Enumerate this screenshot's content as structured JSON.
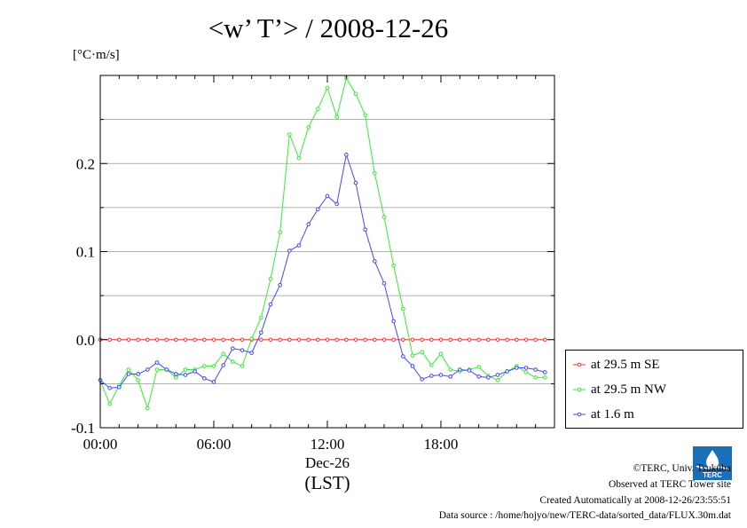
{
  "title": "<w’ T’> / 2008-12-26",
  "unit": "[°C·m/s]",
  "xaxis": {
    "date_label": "Dec-26",
    "tz_label": "(LST)"
  },
  "legend": [
    {
      "label": "at 29.5 m SE",
      "color": "#ff3333"
    },
    {
      "label": "at 29.5 m NW",
      "color": "#33ee33"
    },
    {
      "label": "at 1.6 m",
      "color": "#4444ff"
    }
  ],
  "footer": {
    "credit": "©TERC, Univ. Tsukuba",
    "site": "Observed at TERC Tower site",
    "created": "Created Automatically at 2008-12-26/23:55:51",
    "source": "Data source : /home/hojyo/new/TERC-data/sorted_data/FLUX.30m.dat"
  },
  "logo_text": "TERC",
  "chart_data": {
    "type": "line",
    "title": "<w’ T’> / 2008-12-26",
    "ylabel": "[°C·m/s]",
    "xlabel": "Dec-26 (LST)",
    "xlim": [
      0,
      24
    ],
    "ylim": [
      -0.1,
      0.3
    ],
    "x_ticks": [
      0,
      6,
      12,
      18
    ],
    "x_tick_labels": [
      "00:00",
      "06:00",
      "12:00",
      "18:00"
    ],
    "y_ticks": [
      -0.1,
      0.0,
      0.1,
      0.2
    ],
    "y_tick_labels": [
      "-0.1",
      "0.0",
      "0.1",
      "0.2"
    ],
    "grid": true,
    "legend_position": "right-bottom-outside",
    "x": [
      0,
      0.5,
      1,
      1.5,
      2,
      2.5,
      3,
      3.5,
      4,
      4.5,
      5,
      5.5,
      6,
      6.5,
      7,
      7.5,
      8,
      8.5,
      9,
      9.5,
      10,
      10.5,
      11,
      11.5,
      12,
      12.5,
      13,
      13.5,
      14,
      14.5,
      15,
      15.5,
      16,
      16.5,
      17,
      17.5,
      18,
      18.5,
      19,
      19.5,
      20,
      20.5,
      21,
      21.5,
      22,
      22.5,
      23,
      23.5
    ],
    "series": [
      {
        "name": "at 29.5 m SE",
        "color": "#ff3333",
        "values": [
          0,
          0,
          0,
          0,
          0,
          0,
          0,
          0,
          0,
          0,
          0,
          0,
          0,
          0,
          0,
          0,
          0,
          0,
          0,
          0,
          0,
          0,
          0,
          0,
          0,
          0,
          0,
          0,
          0,
          0,
          0,
          0,
          0,
          0,
          0,
          0,
          0,
          0,
          0,
          0,
          0,
          0,
          0,
          0,
          0,
          0,
          0,
          0
        ]
      },
      {
        "name": "at 29.5 m NW",
        "color": "#33ee33",
        "values": [
          -0.046,
          -0.073,
          -0.052,
          -0.034,
          -0.046,
          -0.078,
          -0.034,
          -0.034,
          -0.043,
          -0.034,
          -0.034,
          -0.03,
          -0.03,
          -0.016,
          -0.025,
          -0.03,
          0.001,
          0.025,
          0.069,
          0.122,
          0.233,
          0.206,
          0.241,
          0.262,
          0.286,
          0.253,
          0.297,
          0.279,
          0.255,
          0.189,
          0.139,
          0.084,
          0.035,
          -0.018,
          -0.014,
          -0.029,
          -0.016,
          -0.034,
          -0.036,
          -0.034,
          -0.031,
          -0.041,
          -0.046,
          -0.036,
          -0.03,
          -0.037,
          -0.043,
          -0.043
        ]
      },
      {
        "name": "at 1.6 m",
        "color": "#4444ff",
        "values": [
          -0.046,
          -0.055,
          -0.054,
          -0.039,
          -0.039,
          -0.034,
          -0.026,
          -0.034,
          -0.039,
          -0.04,
          -0.036,
          -0.044,
          -0.048,
          -0.029,
          -0.01,
          -0.012,
          -0.015,
          0.008,
          0.04,
          0.062,
          0.101,
          0.107,
          0.131,
          0.148,
          0.163,
          0.154,
          0.21,
          0.178,
          0.125,
          0.089,
          0.064,
          0.021,
          -0.019,
          -0.03,
          -0.045,
          -0.041,
          -0.04,
          -0.042,
          -0.034,
          -0.035,
          -0.042,
          -0.043,
          -0.04,
          -0.036,
          -0.032,
          -0.032,
          -0.034,
          -0.037
        ]
      }
    ]
  }
}
